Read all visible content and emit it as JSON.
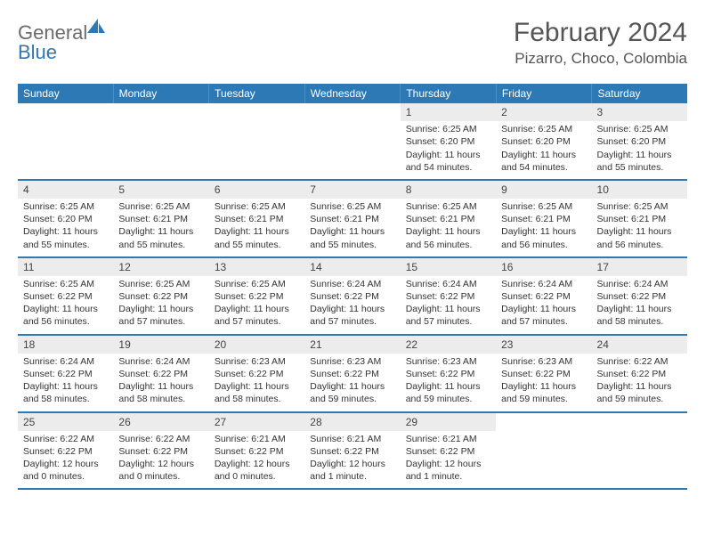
{
  "logo": {
    "textA": "General",
    "textB": "Blue"
  },
  "title": "February 2024",
  "location": "Pizarro, Choco, Colombia",
  "colors": {
    "headerBg": "#2d79b5",
    "dayNumBg": "#ececec",
    "ruleColor": "#2d79b5"
  },
  "dayNames": [
    "Sunday",
    "Monday",
    "Tuesday",
    "Wednesday",
    "Thursday",
    "Friday",
    "Saturday"
  ],
  "weeks": [
    [
      {
        "n": "",
        "sr": "",
        "ss": "",
        "dl": ""
      },
      {
        "n": "",
        "sr": "",
        "ss": "",
        "dl": ""
      },
      {
        "n": "",
        "sr": "",
        "ss": "",
        "dl": ""
      },
      {
        "n": "",
        "sr": "",
        "ss": "",
        "dl": ""
      },
      {
        "n": "1",
        "sr": "Sunrise: 6:25 AM",
        "ss": "Sunset: 6:20 PM",
        "dl": "Daylight: 11 hours and 54 minutes."
      },
      {
        "n": "2",
        "sr": "Sunrise: 6:25 AM",
        "ss": "Sunset: 6:20 PM",
        "dl": "Daylight: 11 hours and 54 minutes."
      },
      {
        "n": "3",
        "sr": "Sunrise: 6:25 AM",
        "ss": "Sunset: 6:20 PM",
        "dl": "Daylight: 11 hours and 55 minutes."
      }
    ],
    [
      {
        "n": "4",
        "sr": "Sunrise: 6:25 AM",
        "ss": "Sunset: 6:20 PM",
        "dl": "Daylight: 11 hours and 55 minutes."
      },
      {
        "n": "5",
        "sr": "Sunrise: 6:25 AM",
        "ss": "Sunset: 6:21 PM",
        "dl": "Daylight: 11 hours and 55 minutes."
      },
      {
        "n": "6",
        "sr": "Sunrise: 6:25 AM",
        "ss": "Sunset: 6:21 PM",
        "dl": "Daylight: 11 hours and 55 minutes."
      },
      {
        "n": "7",
        "sr": "Sunrise: 6:25 AM",
        "ss": "Sunset: 6:21 PM",
        "dl": "Daylight: 11 hours and 55 minutes."
      },
      {
        "n": "8",
        "sr": "Sunrise: 6:25 AM",
        "ss": "Sunset: 6:21 PM",
        "dl": "Daylight: 11 hours and 56 minutes."
      },
      {
        "n": "9",
        "sr": "Sunrise: 6:25 AM",
        "ss": "Sunset: 6:21 PM",
        "dl": "Daylight: 11 hours and 56 minutes."
      },
      {
        "n": "10",
        "sr": "Sunrise: 6:25 AM",
        "ss": "Sunset: 6:21 PM",
        "dl": "Daylight: 11 hours and 56 minutes."
      }
    ],
    [
      {
        "n": "11",
        "sr": "Sunrise: 6:25 AM",
        "ss": "Sunset: 6:22 PM",
        "dl": "Daylight: 11 hours and 56 minutes."
      },
      {
        "n": "12",
        "sr": "Sunrise: 6:25 AM",
        "ss": "Sunset: 6:22 PM",
        "dl": "Daylight: 11 hours and 57 minutes."
      },
      {
        "n": "13",
        "sr": "Sunrise: 6:25 AM",
        "ss": "Sunset: 6:22 PM",
        "dl": "Daylight: 11 hours and 57 minutes."
      },
      {
        "n": "14",
        "sr": "Sunrise: 6:24 AM",
        "ss": "Sunset: 6:22 PM",
        "dl": "Daylight: 11 hours and 57 minutes."
      },
      {
        "n": "15",
        "sr": "Sunrise: 6:24 AM",
        "ss": "Sunset: 6:22 PM",
        "dl": "Daylight: 11 hours and 57 minutes."
      },
      {
        "n": "16",
        "sr": "Sunrise: 6:24 AM",
        "ss": "Sunset: 6:22 PM",
        "dl": "Daylight: 11 hours and 57 minutes."
      },
      {
        "n": "17",
        "sr": "Sunrise: 6:24 AM",
        "ss": "Sunset: 6:22 PM",
        "dl": "Daylight: 11 hours and 58 minutes."
      }
    ],
    [
      {
        "n": "18",
        "sr": "Sunrise: 6:24 AM",
        "ss": "Sunset: 6:22 PM",
        "dl": "Daylight: 11 hours and 58 minutes."
      },
      {
        "n": "19",
        "sr": "Sunrise: 6:24 AM",
        "ss": "Sunset: 6:22 PM",
        "dl": "Daylight: 11 hours and 58 minutes."
      },
      {
        "n": "20",
        "sr": "Sunrise: 6:23 AM",
        "ss": "Sunset: 6:22 PM",
        "dl": "Daylight: 11 hours and 58 minutes."
      },
      {
        "n": "21",
        "sr": "Sunrise: 6:23 AM",
        "ss": "Sunset: 6:22 PM",
        "dl": "Daylight: 11 hours and 59 minutes."
      },
      {
        "n": "22",
        "sr": "Sunrise: 6:23 AM",
        "ss": "Sunset: 6:22 PM",
        "dl": "Daylight: 11 hours and 59 minutes."
      },
      {
        "n": "23",
        "sr": "Sunrise: 6:23 AM",
        "ss": "Sunset: 6:22 PM",
        "dl": "Daylight: 11 hours and 59 minutes."
      },
      {
        "n": "24",
        "sr": "Sunrise: 6:22 AM",
        "ss": "Sunset: 6:22 PM",
        "dl": "Daylight: 11 hours and 59 minutes."
      }
    ],
    [
      {
        "n": "25",
        "sr": "Sunrise: 6:22 AM",
        "ss": "Sunset: 6:22 PM",
        "dl": "Daylight: 12 hours and 0 minutes."
      },
      {
        "n": "26",
        "sr": "Sunrise: 6:22 AM",
        "ss": "Sunset: 6:22 PM",
        "dl": "Daylight: 12 hours and 0 minutes."
      },
      {
        "n": "27",
        "sr": "Sunrise: 6:21 AM",
        "ss": "Sunset: 6:22 PM",
        "dl": "Daylight: 12 hours and 0 minutes."
      },
      {
        "n": "28",
        "sr": "Sunrise: 6:21 AM",
        "ss": "Sunset: 6:22 PM",
        "dl": "Daylight: 12 hours and 1 minute."
      },
      {
        "n": "29",
        "sr": "Sunrise: 6:21 AM",
        "ss": "Sunset: 6:22 PM",
        "dl": "Daylight: 12 hours and 1 minute."
      },
      {
        "n": "",
        "sr": "",
        "ss": "",
        "dl": ""
      },
      {
        "n": "",
        "sr": "",
        "ss": "",
        "dl": ""
      }
    ]
  ]
}
